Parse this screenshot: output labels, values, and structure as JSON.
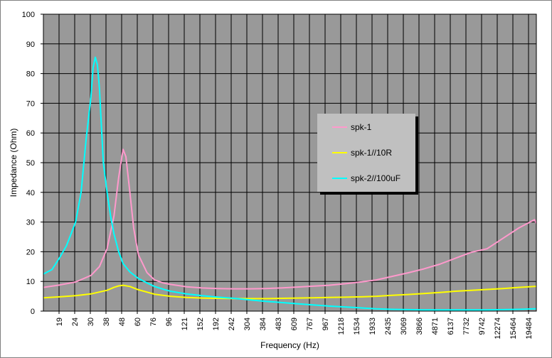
{
  "chart_data": {
    "type": "line",
    "xlabel": "Frequency (Hz)",
    "ylabel": "Impedance (Ohm)",
    "ylim": [
      0,
      100
    ],
    "yticks": [
      0,
      10,
      20,
      30,
      40,
      50,
      60,
      70,
      80,
      90,
      100
    ],
    "x_tick_labels": [
      "19",
      "24",
      "30",
      "38",
      "48",
      "60",
      "76",
      "96",
      "121",
      "152",
      "192",
      "242",
      "304",
      "384",
      "483",
      "609",
      "767",
      "967",
      "1218",
      "1534",
      "1933",
      "2435",
      "3069",
      "3866",
      "4871",
      "6137",
      "7732",
      "9742",
      "12274",
      "15464",
      "19484"
    ],
    "x_scale": "log",
    "xlim": [
      15,
      20000
    ],
    "grid": true,
    "legend_position": "right-center",
    "plot_background": "#999999",
    "series": [
      {
        "name": "spk-1",
        "color": "#ff99cc",
        "x": [
          15,
          19,
          24,
          30,
          34,
          38,
          42,
          45,
          48,
          50,
          53,
          56,
          60,
          68,
          76,
          86,
          96,
          121,
          152,
          192,
          242,
          304,
          384,
          483,
          609,
          767,
          967,
          1218,
          1534,
          1933,
          2435,
          3069,
          3866,
          4871,
          6137,
          7732,
          9742,
          12274,
          15464,
          19484,
          20000
        ],
        "y": [
          8,
          8.8,
          9.8,
          12,
          15,
          21,
          32,
          45,
          54.5,
          52,
          40,
          28,
          19,
          13,
          10.5,
          9.5,
          9,
          8.2,
          7.8,
          7.6,
          7.5,
          7.5,
          7.6,
          7.8,
          8.1,
          8.4,
          8.7,
          9.2,
          9.8,
          10.5,
          11.7,
          12.9,
          14.2,
          15.8,
          17.8,
          19.8,
          21,
          24.5,
          28,
          30.8,
          29.5
        ]
      },
      {
        "name": "spk-1//10R",
        "color": "#ffff00",
        "x": [
          15,
          19,
          24,
          30,
          38,
          42,
          45,
          48,
          53,
          60,
          76,
          96,
          121,
          152,
          192,
          242,
          304,
          384,
          483,
          609,
          767,
          967,
          1218,
          1534,
          1933,
          2435,
          3069,
          3866,
          4871,
          6137,
          7732,
          9742,
          12274,
          15464,
          19484,
          20000
        ],
        "y": [
          4.5,
          4.8,
          5.2,
          5.8,
          7,
          8,
          8.5,
          8.7,
          8.3,
          7.2,
          5.7,
          5,
          4.6,
          4.4,
          4.3,
          4.2,
          4.2,
          4.2,
          4.3,
          4.4,
          4.5,
          4.6,
          4.7,
          4.8,
          5.0,
          5.3,
          5.6,
          5.9,
          6.3,
          6.7,
          7.0,
          7.3,
          7.6,
          8.0,
          8.3,
          8.3
        ]
      },
      {
        "name": "spk-2//100uF",
        "color": "#00ffff",
        "x": [
          15,
          17,
          19,
          21,
          24,
          26,
          28,
          30,
          31,
          32,
          33,
          34,
          35,
          36,
          38,
          40,
          42,
          45,
          48,
          53,
          60,
          68,
          76,
          86,
          96,
          121,
          152,
          192,
          242,
          304,
          384,
          483,
          609,
          767,
          967,
          1218,
          1534,
          1933,
          2435,
          3069,
          3866,
          4871,
          6137,
          7732,
          9742,
          12274,
          15464,
          19484,
          20000
        ],
        "y": [
          12.5,
          14,
          18,
          22,
          30,
          40,
          58,
          72,
          82,
          85.5,
          83,
          75,
          62,
          50,
          40,
          32,
          26,
          20,
          16,
          13.2,
          11,
          9.5,
          8.3,
          7.4,
          6.7,
          5.8,
          5.2,
          4.7,
          4.3,
          3.8,
          3.3,
          2.9,
          2.5,
          2.1,
          1.7,
          1.4,
          1.1,
          0.8,
          0.6,
          0.5,
          0.4,
          0.4,
          0.4,
          0.4,
          0.4,
          0.5,
          0.6,
          0.8,
          0.8
        ]
      }
    ]
  }
}
